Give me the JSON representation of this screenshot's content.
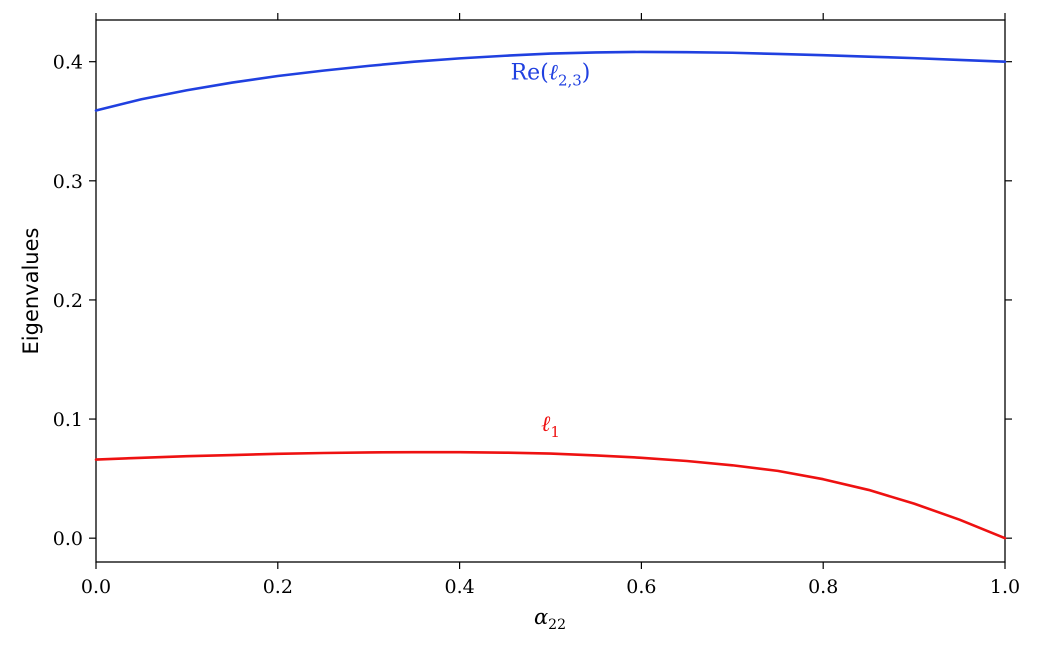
{
  "chart_data": {
    "type": "line",
    "title": "",
    "xlabel": {
      "base": "α",
      "sub": "22"
    },
    "ylabel": "Eigenvalues",
    "xlim": [
      0.0,
      1.0
    ],
    "ylim": [
      -0.02,
      0.435
    ],
    "xticks": [
      0.0,
      0.2,
      0.4,
      0.6,
      0.8,
      1.0
    ],
    "xtick_labels": [
      "0.0",
      "0.2",
      "0.4",
      "0.6",
      "0.8",
      "1.0"
    ],
    "yticks": [
      0.0,
      0.1,
      0.2,
      0.3,
      0.4
    ],
    "ytick_labels": [
      "0.0",
      "0.1",
      "0.2",
      "0.3",
      "0.4"
    ],
    "grid": false,
    "series": [
      {
        "color": "#2040e0",
        "annotation": {
          "prefix": "Re(",
          "base": "ℓ",
          "sub": "2,3",
          "suffix": ")",
          "x": 0.5,
          "y": 0.385
        },
        "x": [
          0.0,
          0.05,
          0.1,
          0.15,
          0.2,
          0.25,
          0.3,
          0.35,
          0.4,
          0.45,
          0.5,
          0.55,
          0.6,
          0.65,
          0.7,
          0.75,
          0.8,
          0.85,
          0.9,
          0.95,
          1.0
        ],
        "y": [
          0.359,
          0.3685,
          0.376,
          0.3825,
          0.388,
          0.3925,
          0.3965,
          0.4,
          0.4028,
          0.405,
          0.4068,
          0.4078,
          0.4082,
          0.408,
          0.4075,
          0.4065,
          0.4055,
          0.4042,
          0.403,
          0.4015,
          0.4
        ]
      },
      {
        "color": "#ee1111",
        "annotation": {
          "prefix": "",
          "base": "ℓ",
          "sub": "1",
          "suffix": "",
          "x": 0.5,
          "y": 0.09
        },
        "x": [
          0.0,
          0.05,
          0.1,
          0.15,
          0.2,
          0.25,
          0.3,
          0.35,
          0.4,
          0.45,
          0.5,
          0.55,
          0.6,
          0.65,
          0.7,
          0.75,
          0.8,
          0.85,
          0.9,
          0.95,
          1.0
        ],
        "y": [
          0.066,
          0.0675,
          0.0688,
          0.0698,
          0.0708,
          0.0715,
          0.072,
          0.0722,
          0.0722,
          0.0718,
          0.071,
          0.0695,
          0.0675,
          0.0648,
          0.0612,
          0.0565,
          0.0495,
          0.0405,
          0.029,
          0.0155,
          0.0
        ]
      }
    ]
  }
}
